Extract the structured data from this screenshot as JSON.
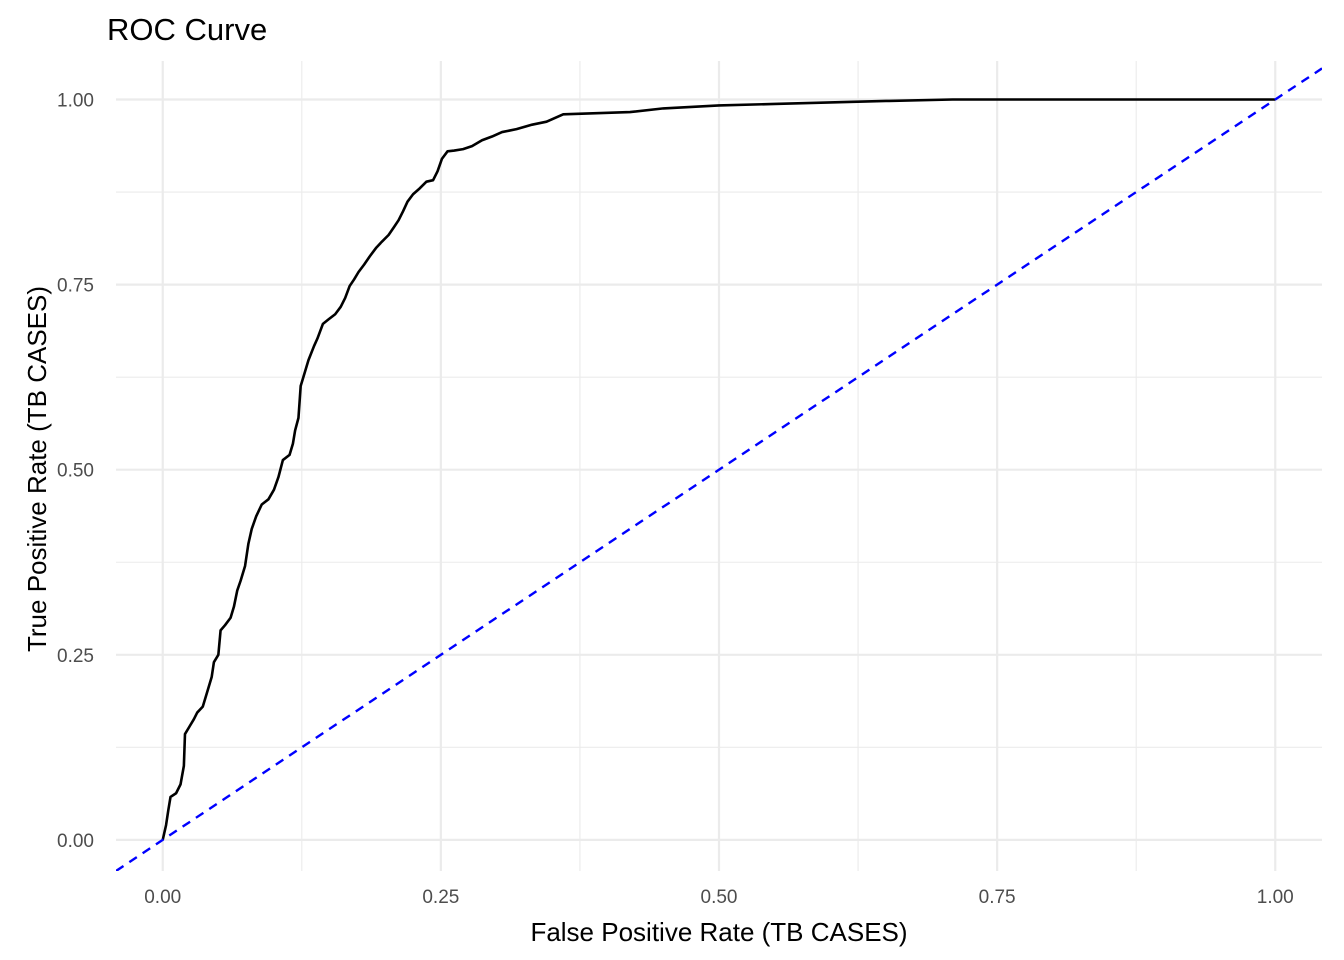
{
  "chart_data": {
    "type": "line",
    "title": "ROC Curve",
    "xlabel": "False Positive Rate (TB CASES)",
    "ylabel": "True Positive Rate (TB CASES)",
    "xlim": [
      -0.042,
      1.042
    ],
    "ylim": [
      -0.042,
      1.052
    ],
    "x_ticks": [
      {
        "value": 0.0,
        "label": "0.00"
      },
      {
        "value": 0.25,
        "label": "0.25"
      },
      {
        "value": 0.5,
        "label": "0.50"
      },
      {
        "value": 0.75,
        "label": "0.75"
      },
      {
        "value": 1.0,
        "label": "1.00"
      }
    ],
    "y_ticks": [
      {
        "value": 0.0,
        "label": "0.00"
      },
      {
        "value": 0.25,
        "label": "0.25"
      },
      {
        "value": 0.5,
        "label": "0.50"
      },
      {
        "value": 0.75,
        "label": "0.75"
      },
      {
        "value": 1.0,
        "label": "1.00"
      }
    ],
    "x_minor": [
      0.125,
      0.375,
      0.625,
      0.875
    ],
    "y_minor": [
      0.125,
      0.375,
      0.625,
      0.875
    ],
    "grid": true,
    "series": [
      {
        "color": "#000000",
        "style": "solid",
        "points": [
          [
            0.0,
            0.0
          ],
          [
            0.003,
            0.02
          ],
          [
            0.005,
            0.04
          ],
          [
            0.007,
            0.058
          ],
          [
            0.012,
            0.063
          ],
          [
            0.016,
            0.075
          ],
          [
            0.019,
            0.1
          ],
          [
            0.02,
            0.143
          ],
          [
            0.024,
            0.153
          ],
          [
            0.028,
            0.163
          ],
          [
            0.031,
            0.172
          ],
          [
            0.036,
            0.18
          ],
          [
            0.04,
            0.2
          ],
          [
            0.044,
            0.22
          ],
          [
            0.046,
            0.24
          ],
          [
            0.05,
            0.25
          ],
          [
            0.052,
            0.283
          ],
          [
            0.056,
            0.29
          ],
          [
            0.061,
            0.3
          ],
          [
            0.064,
            0.315
          ],
          [
            0.067,
            0.337
          ],
          [
            0.07,
            0.35
          ],
          [
            0.074,
            0.37
          ],
          [
            0.077,
            0.4
          ],
          [
            0.08,
            0.42
          ],
          [
            0.084,
            0.437
          ],
          [
            0.089,
            0.453
          ],
          [
            0.095,
            0.46
          ],
          [
            0.1,
            0.473
          ],
          [
            0.104,
            0.49
          ],
          [
            0.108,
            0.513
          ],
          [
            0.114,
            0.52
          ],
          [
            0.117,
            0.535
          ],
          [
            0.119,
            0.553
          ],
          [
            0.122,
            0.57
          ],
          [
            0.124,
            0.613
          ],
          [
            0.128,
            0.633
          ],
          [
            0.131,
            0.648
          ],
          [
            0.136,
            0.667
          ],
          [
            0.139,
            0.677
          ],
          [
            0.144,
            0.697
          ],
          [
            0.149,
            0.703
          ],
          [
            0.155,
            0.71
          ],
          [
            0.16,
            0.72
          ],
          [
            0.164,
            0.732
          ],
          [
            0.168,
            0.748
          ],
          [
            0.172,
            0.757
          ],
          [
            0.176,
            0.767
          ],
          [
            0.181,
            0.777
          ],
          [
            0.186,
            0.788
          ],
          [
            0.192,
            0.8
          ],
          [
            0.197,
            0.808
          ],
          [
            0.203,
            0.817
          ],
          [
            0.208,
            0.828
          ],
          [
            0.212,
            0.837
          ],
          [
            0.216,
            0.849
          ],
          [
            0.22,
            0.862
          ],
          [
            0.225,
            0.872
          ],
          [
            0.231,
            0.88
          ],
          [
            0.237,
            0.889
          ],
          [
            0.243,
            0.891
          ],
          [
            0.247,
            0.903
          ],
          [
            0.251,
            0.92
          ],
          [
            0.256,
            0.93
          ],
          [
            0.262,
            0.931
          ],
          [
            0.27,
            0.933
          ],
          [
            0.278,
            0.937
          ],
          [
            0.287,
            0.945
          ],
          [
            0.296,
            0.95
          ],
          [
            0.305,
            0.956
          ],
          [
            0.318,
            0.96
          ],
          [
            0.332,
            0.966
          ],
          [
            0.345,
            0.97
          ],
          [
            0.36,
            0.98
          ],
          [
            0.38,
            0.981
          ],
          [
            0.42,
            0.983
          ],
          [
            0.45,
            0.988
          ],
          [
            0.5,
            0.992
          ],
          [
            0.55,
            0.994
          ],
          [
            0.6,
            0.996
          ],
          [
            0.65,
            0.998
          ],
          [
            0.71,
            1.0
          ],
          [
            0.76,
            1.0
          ],
          [
            1.0,
            1.0
          ]
        ]
      },
      {
        "color": "#0000ff",
        "style": "dashed",
        "points": [
          [
            -0.042,
            -0.042
          ],
          [
            1.042,
            1.042
          ]
        ]
      }
    ]
  }
}
